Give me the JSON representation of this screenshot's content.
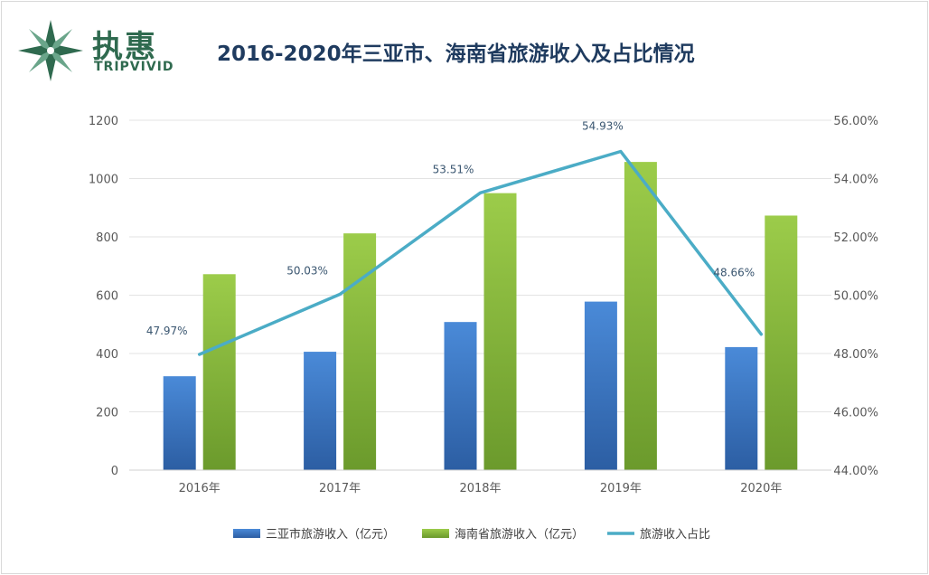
{
  "header": {
    "title": "2016-2020年三亚市、海南省旅游收入及占比情况",
    "logo_cn": "执惠",
    "logo_en": "TRIPVIVID"
  },
  "colors": {
    "sanya_bar": "#3a78c9",
    "hainan_bar": "#8cbf3f",
    "ratio_line": "#4bacc6",
    "title": "#1f3b5f",
    "logo": "#2f6a4f"
  },
  "chart_data": {
    "type": "bar",
    "title": "2016-2020年三亚市、海南省旅游收入及占比情况",
    "categories": [
      "2016年",
      "2017年",
      "2018年",
      "2019年",
      "2020年"
    ],
    "series": [
      {
        "name": "三亚市旅游收入（亿元）",
        "kind": "bar",
        "axis": "left",
        "values": [
          322,
          406,
          508,
          578,
          422
        ]
      },
      {
        "name": "海南省旅游收入（亿元）",
        "kind": "bar",
        "axis": "left",
        "values": [
          672,
          812,
          950,
          1057,
          873
        ]
      },
      {
        "name": "旅游收入占比",
        "kind": "line",
        "axis": "right",
        "values": [
          47.97,
          50.03,
          53.51,
          54.93,
          48.66
        ],
        "labels": [
          "47.97%",
          "50.03%",
          "53.51%",
          "54.93%",
          "48.66%"
        ]
      }
    ],
    "y_left": {
      "min": 0,
      "max": 1200,
      "step": 200,
      "ticks": [
        "0",
        "200",
        "400",
        "600",
        "800",
        "1000",
        "1200"
      ]
    },
    "y_right": {
      "min": 44,
      "max": 56,
      "step": 2,
      "ticks": [
        "44.00%",
        "46.00%",
        "48.00%",
        "50.00%",
        "52.00%",
        "54.00%",
        "56.00%"
      ]
    },
    "grid": true,
    "legend_position": "bottom"
  }
}
